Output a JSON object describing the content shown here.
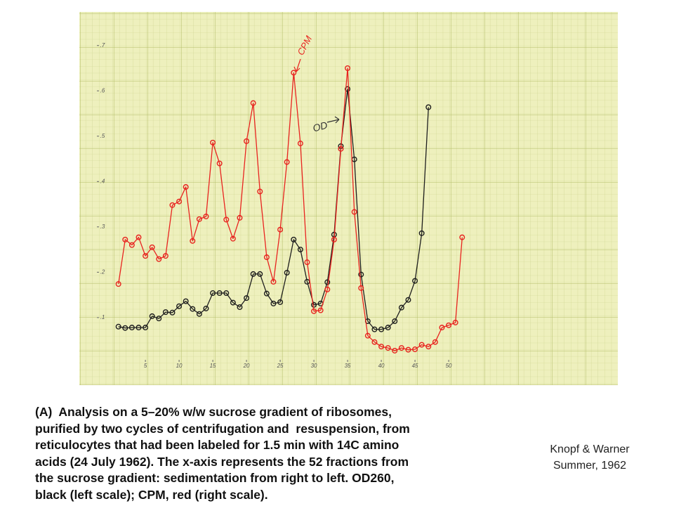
{
  "chart_data": {
    "type": "line",
    "annotations": [
      "CPM",
      "OD"
    ],
    "xlim": [
      -4.8,
      75.1
    ],
    "xticks": [
      5,
      10,
      15,
      20,
      25,
      30,
      35,
      40,
      45,
      50
    ],
    "ylim": [
      -0.049,
      0.774
    ],
    "yticks": [
      {
        "value": 0.1,
        "label": ".1"
      },
      {
        "value": 0.2,
        "label": ".2"
      },
      {
        "value": 0.3,
        "label": ".3"
      },
      {
        "value": 0.4,
        "label": ".4"
      },
      {
        "value": 0.5,
        "label": ".5"
      },
      {
        "value": 0.6,
        "label": ".6"
      },
      {
        "value": 0.7,
        "label": ".7"
      }
    ],
    "series": [
      {
        "color": "#1e1e1e",
        "x": [
          1,
          2,
          3,
          4,
          5,
          6,
          7,
          8,
          9,
          10,
          11,
          12,
          13,
          14,
          15,
          16,
          17,
          18,
          19,
          20,
          21,
          22,
          23,
          24,
          25,
          26,
          27,
          28,
          29,
          30,
          31,
          32,
          33,
          34,
          35,
          36,
          37,
          38,
          39,
          40,
          41,
          42,
          43,
          44,
          45,
          46,
          47
        ],
        "values": [
          0.08,
          0.077,
          0.078,
          0.078,
          0.078,
          0.103,
          0.098,
          0.112,
          0.111,
          0.125,
          0.136,
          0.119,
          0.108,
          0.12,
          0.154,
          0.154,
          0.154,
          0.133,
          0.123,
          0.143,
          0.196,
          0.196,
          0.153,
          0.131,
          0.134,
          0.199,
          0.272,
          0.25,
          0.179,
          0.128,
          0.131,
          0.178,
          0.283,
          0.478,
          0.604,
          0.449,
          0.195,
          0.092,
          0.074,
          0.074,
          0.078,
          0.092,
          0.122,
          0.139,
          0.181,
          0.286,
          0.564
        ]
      },
      {
        "color": "#e8231f",
        "x": [
          1,
          2,
          3,
          4,
          5,
          6,
          7,
          8,
          9,
          10,
          11,
          12,
          13,
          14,
          15,
          16,
          17,
          18,
          19,
          20,
          21,
          22,
          23,
          24,
          25,
          26,
          27,
          28,
          29,
          30,
          31,
          32,
          33,
          34,
          35,
          36,
          37,
          38,
          39,
          40,
          41,
          42,
          43,
          44,
          45,
          46,
          47,
          48,
          49,
          50,
          51,
          52
        ],
        "values": [
          0.174,
          0.272,
          0.26,
          0.277,
          0.236,
          0.255,
          0.229,
          0.236,
          0.348,
          0.356,
          0.388,
          0.269,
          0.317,
          0.323,
          0.486,
          0.44,
          0.316,
          0.274,
          0.32,
          0.489,
          0.573,
          0.378,
          0.233,
          0.179,
          0.294,
          0.443,
          0.64,
          0.484,
          0.222,
          0.114,
          0.116,
          0.162,
          0.272,
          0.472,
          0.65,
          0.333,
          0.165,
          0.06,
          0.046,
          0.036,
          0.033,
          0.027,
          0.033,
          0.029,
          0.03,
          0.04,
          0.036,
          0.046,
          0.078,
          0.083,
          0.089,
          0.277
        ]
      }
    ]
  },
  "caption": [
    "(A)  Analysis on a 5–20% w/w sucrose gradient of ribosomes,",
    "purified by two cycles of centrifugation and  resuspension, from",
    "reticulocytes that had been labeled for 1.5 min with 14C amino",
    "acids (24 July 1962). The x-axis represents the 52 fractions from",
    "the sucrose gradient: sedimentation from right to left. OD260,",
    "black (left scale); CPM, red (right scale)."
  ],
  "credit": [
    "Knopf & Warner",
    "Summer, 1962"
  ]
}
